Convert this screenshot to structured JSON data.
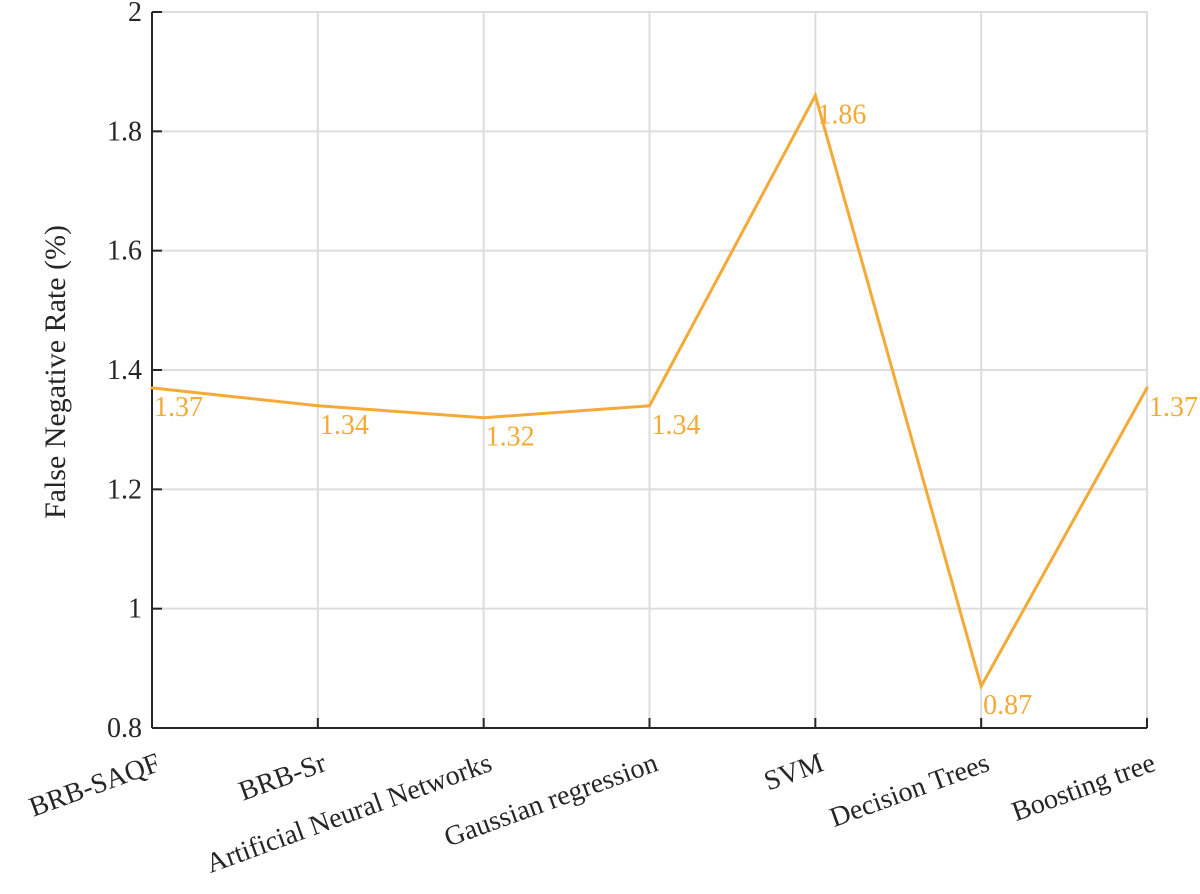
{
  "chart_data": {
    "type": "line",
    "title": "",
    "xlabel": "",
    "ylabel": "False Negative Rate (%)",
    "ylim": [
      0.8,
      2
    ],
    "yticks": [
      0.8,
      1,
      1.2,
      1.4,
      1.6,
      1.8,
      2
    ],
    "ytick_labels": [
      "0.8",
      "1",
      "1.2",
      "1.4",
      "1.6",
      "1.8",
      "2"
    ],
    "grid": true,
    "categories": [
      "BRB-SAQF",
      "BRB-Sr",
      "Artificial Neural Networks",
      "Gaussian regression",
      "SVM",
      "Decision Trees",
      "Boosting tree"
    ],
    "series": [
      {
        "name": "False Negative Rate",
        "color": "#f5a937",
        "values": [
          1.37,
          1.34,
          1.32,
          1.34,
          1.86,
          0.87,
          1.37
        ],
        "labels": [
          "1.37",
          "1.34",
          "1.32",
          "1.34",
          "1.86",
          "0.87",
          "1.37"
        ]
      }
    ]
  }
}
